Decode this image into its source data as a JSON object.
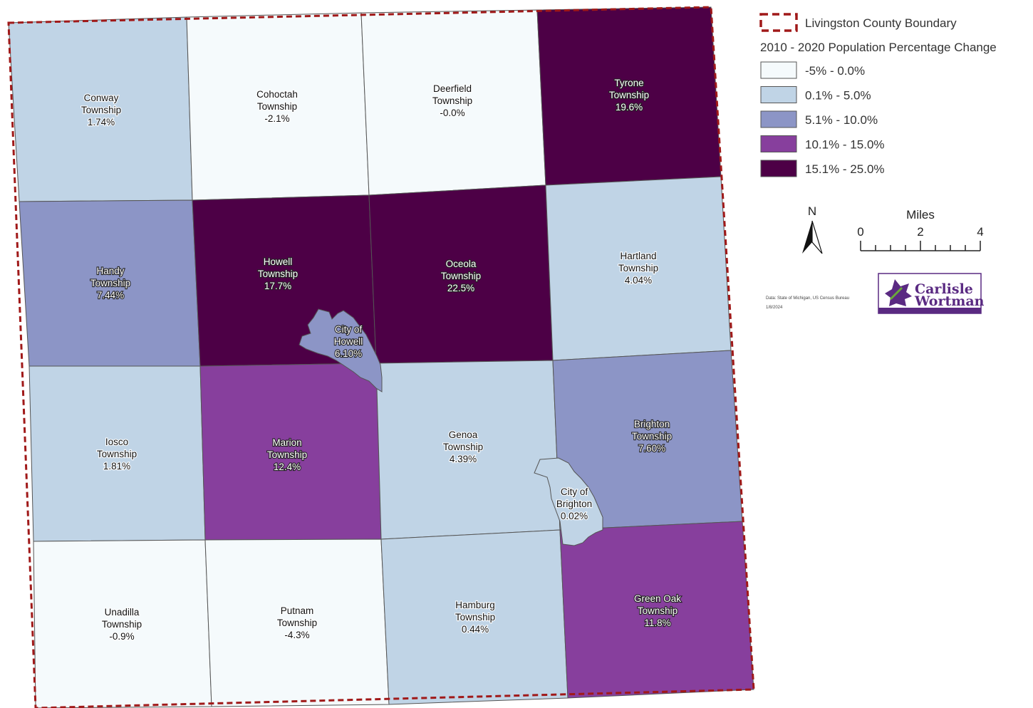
{
  "legend": {
    "boundary_label": "Livingston County Boundary",
    "title": "2010 - 2020 Population Percentage Change",
    "classes": [
      {
        "label": "-5% - 0.0%",
        "color": "#f5fafc"
      },
      {
        "label": "0.1% - 5.0%",
        "color": "#c0d4e6"
      },
      {
        "label": "5.1% - 10.0%",
        "color": "#8c95c6"
      },
      {
        "label": "10.1% - 15.0%",
        "color": "#873f9d"
      },
      {
        "label": "15.1% - 25.0%",
        "color": "#4d0046"
      }
    ]
  },
  "north_label": "N",
  "scale": {
    "title": "Miles",
    "ticks": [
      "0",
      "2",
      "4"
    ]
  },
  "credit": {
    "source": "Data: State of Michigan, US Census Bureau",
    "date": "1/8/2024"
  },
  "logo": {
    "line1": "Carlisle",
    "line2": "Wortman"
  },
  "boundary_color": "#a01919",
  "townships": {
    "conway": {
      "name1": "Conway",
      "name2": "Township",
      "value": "1.74%",
      "class": 1
    },
    "cohoctah": {
      "name1": "Cohoctah",
      "name2": "Township",
      "value": "-2.1%",
      "class": 0
    },
    "deerfield": {
      "name1": "Deerfield",
      "name2": "Township",
      "value": "-0.0%",
      "class": 0
    },
    "tyrone": {
      "name1": "Tyrone",
      "name2": "Township",
      "value": "19.6%",
      "class": 4
    },
    "handy": {
      "name1": "Handy",
      "name2": "Township",
      "value": "7.44%",
      "class": 2
    },
    "howell": {
      "name1": "Howell",
      "name2": "Township",
      "value": "17.7%",
      "class": 4
    },
    "oceola": {
      "name1": "Oceola",
      "name2": "Township",
      "value": "22.5%",
      "class": 4
    },
    "hartland": {
      "name1": "Hartland",
      "name2": "Township",
      "value": "4.04%",
      "class": 1
    },
    "iosco": {
      "name1": "Iosco",
      "name2": "Township",
      "value": "1.81%",
      "class": 1
    },
    "marion": {
      "name1": "Marion",
      "name2": "Township",
      "value": "12.4%",
      "class": 3
    },
    "genoa": {
      "name1": "Genoa",
      "name2": "Township",
      "value": "4.39%",
      "class": 1
    },
    "brighton": {
      "name1": "Brighton",
      "name2": "Township",
      "value": "7.60%",
      "class": 2
    },
    "unadilla": {
      "name1": "Unadilla",
      "name2": "Township",
      "value": "-0.9%",
      "class": 0
    },
    "putnam": {
      "name1": "Putnam",
      "name2": "Township",
      "value": "-4.3%",
      "class": 0
    },
    "hamburg": {
      "name1": "Hamburg",
      "name2": "Township",
      "value": "0.44%",
      "class": 1
    },
    "greenoak": {
      "name1": "Green Oak",
      "name2": "Township",
      "value": "11.8%",
      "class": 3
    },
    "city_howell": {
      "name1": "City of",
      "name2": "Howell",
      "value": "6.10%",
      "class": 2
    },
    "city_brighton": {
      "name1": "City of",
      "name2": "Brighton",
      "value": "0.02%",
      "class": 1
    }
  }
}
